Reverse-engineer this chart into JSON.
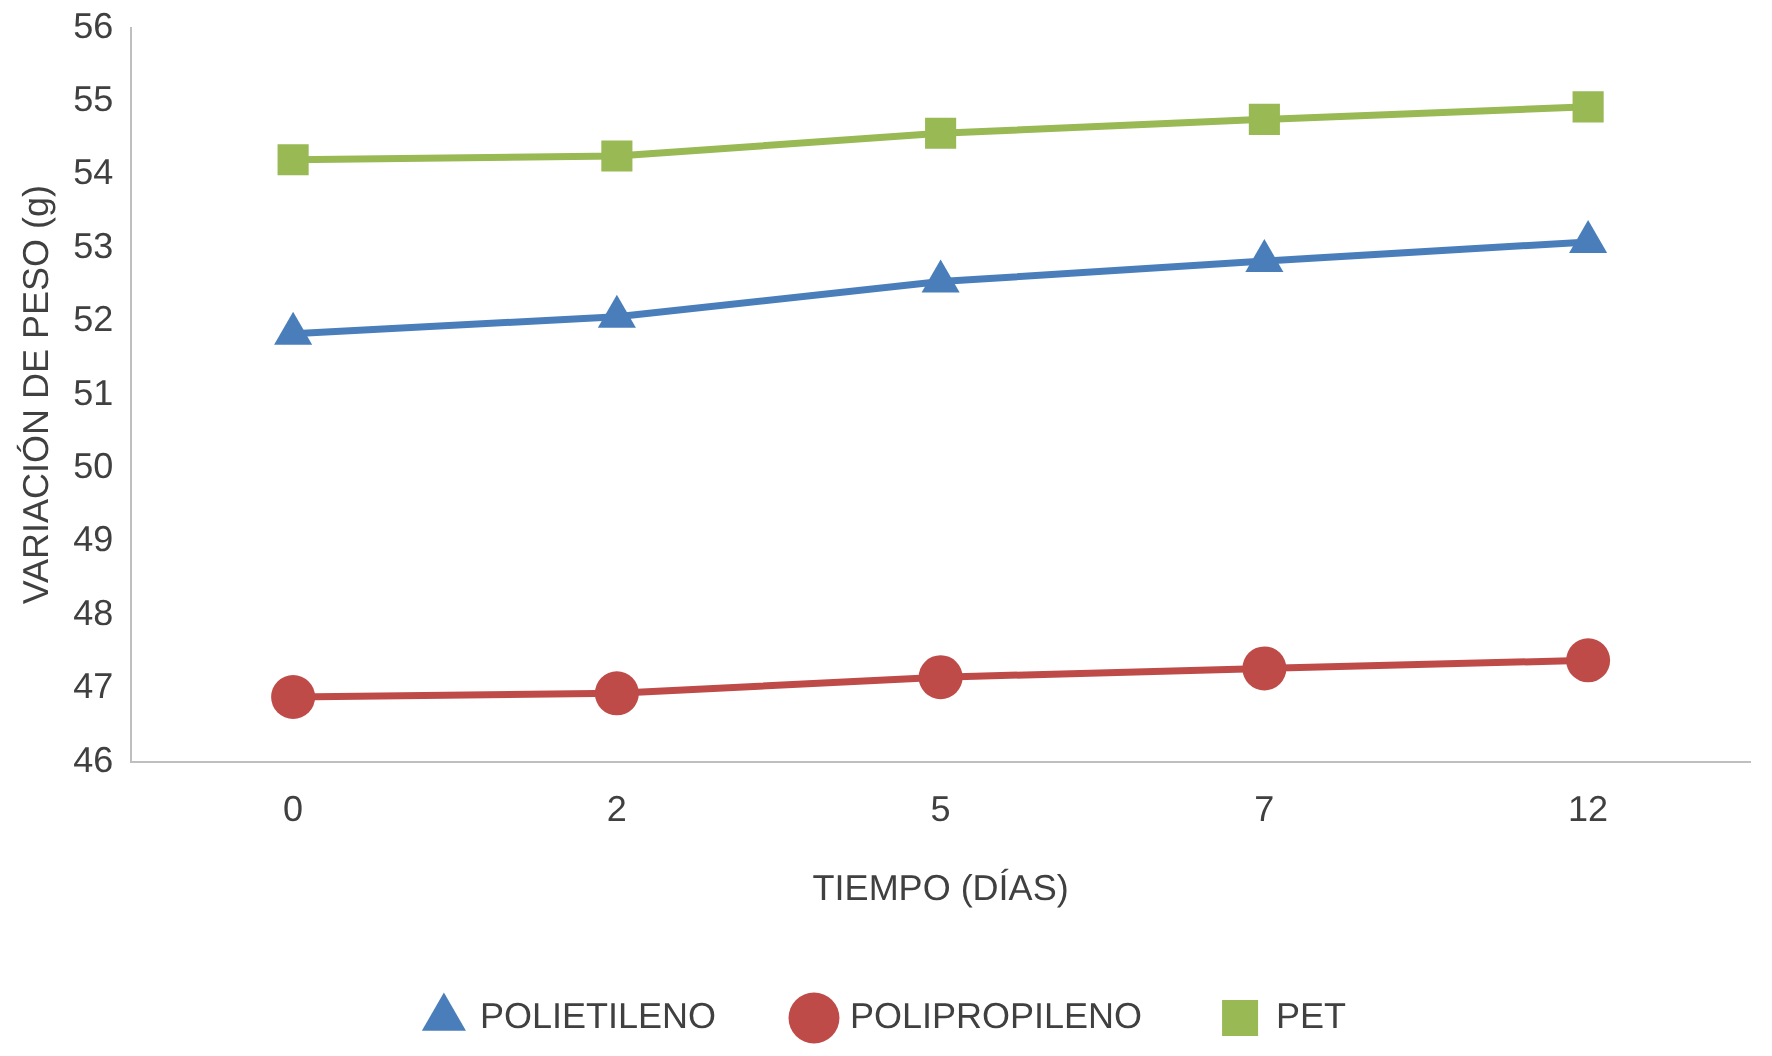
{
  "chart_data": {
    "type": "line",
    "xlabel": "TIEMPO (DÍAS)",
    "ylabel": "VARIACIÓN DE PESO (g)",
    "categories": [
      "0",
      "2",
      "5",
      "7",
      "12"
    ],
    "series": [
      {
        "name": "POLIETILENO",
        "color": "#4a7ebb",
        "marker": "triangle",
        "values": [
          51.83,
          52.06,
          52.54,
          52.82,
          53.08
        ]
      },
      {
        "name": "POLIPROPILENO",
        "color": "#be4b48",
        "marker": "circle",
        "values": [
          46.88,
          46.93,
          47.15,
          47.27,
          47.38
        ]
      },
      {
        "name": "PET",
        "color": "#98b954",
        "marker": "square",
        "values": [
          54.2,
          54.25,
          54.56,
          54.75,
          54.92
        ]
      }
    ],
    "ylim": [
      46,
      56
    ],
    "yticks": [
      46,
      47,
      48,
      49,
      50,
      51,
      52,
      53,
      54,
      55,
      56
    ],
    "grid": false,
    "legend": "bottom"
  }
}
